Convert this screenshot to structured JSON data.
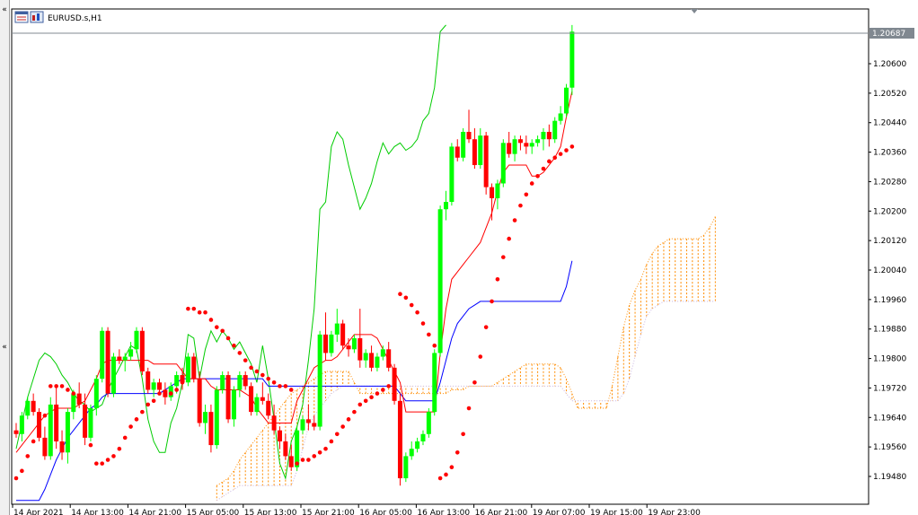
{
  "window": {
    "title": "EURUSD.s,H1",
    "icons": [
      "chart-window-icon",
      "chart-properties-icon"
    ]
  },
  "colors": {
    "background": "#ffffff",
    "bull_candle": "#00ff00",
    "bear_candle": "#ff0000",
    "tenkan": "#ff0000",
    "kijun": "#0000ff",
    "chikou": "#00cc00",
    "cloud": "#ff8c00",
    "sar": "#ff0000",
    "price_tag": "#808890",
    "axis_line": "#000000"
  },
  "chart_data": {
    "type": "candlestick",
    "symbol": "EURUSD.s",
    "timeframe": "H1",
    "current_price_label": "1.20687",
    "y_ticks": [
      "1.20600",
      "1.20520",
      "1.20440",
      "1.20360",
      "1.20280",
      "1.20200",
      "1.20120",
      "1.20040",
      "1.19960",
      "1.19880",
      "1.19800",
      "1.19720",
      "1.19640",
      "1.19560",
      "1.19480"
    ],
    "x_ticks": [
      "14 Apr 2021",
      "14 Apr 13:00",
      "14 Apr 21:00",
      "15 Apr 05:00",
      "15 Apr 13:00",
      "15 Apr 21:00",
      "16 Apr 05:00",
      "16 Apr 13:00",
      "16 Apr 21:00",
      "19 Apr 07:00",
      "19 Apr 15:00",
      "19 Apr 23:00"
    ],
    "ylim": [
      1.19415,
      1.20705
    ],
    "candles": [
      [
        1.19605,
        1.19625,
        1.19585,
        1.19595
      ],
      [
        1.19595,
        1.19655,
        1.19575,
        1.19645
      ],
      [
        1.19645,
        1.19695,
        1.19635,
        1.19685
      ],
      [
        1.19685,
        1.19705,
        1.19645,
        1.19655
      ],
      [
        1.19655,
        1.19665,
        1.19575,
        1.19585
      ],
      [
        1.19585,
        1.19615,
        1.19525,
        1.19535
      ],
      [
        1.19535,
        1.19695,
        1.19525,
        1.19675
      ],
      [
        1.19675,
        1.19725,
        1.19555,
        1.19575
      ],
      [
        1.19575,
        1.19605,
        1.19525,
        1.19545
      ],
      [
        1.19545,
        1.19665,
        1.19515,
        1.19655
      ],
      [
        1.19655,
        1.19715,
        1.19635,
        1.19705
      ],
      [
        1.19705,
        1.19735,
        1.19665,
        1.19675
      ],
      [
        1.19675,
        1.19705,
        1.19565,
        1.19585
      ],
      [
        1.19585,
        1.19675,
        1.19575,
        1.19665
      ],
      [
        1.19665,
        1.19755,
        1.19645,
        1.19745
      ],
      [
        1.19745,
        1.19885,
        1.19735,
        1.19875
      ],
      [
        1.19875,
        1.19885,
        1.19695,
        1.19705
      ],
      [
        1.19705,
        1.19815,
        1.19695,
        1.19805
      ],
      [
        1.19805,
        1.19825,
        1.19785,
        1.19795
      ],
      [
        1.19795,
        1.19815,
        1.19765,
        1.19805
      ],
      [
        1.19805,
        1.19845,
        1.19795,
        1.19825
      ],
      [
        1.19825,
        1.19885,
        1.19815,
        1.19875
      ],
      [
        1.19875,
        1.19885,
        1.19755,
        1.19765
      ],
      [
        1.19765,
        1.19775,
        1.19705,
        1.19715
      ],
      [
        1.19715,
        1.19745,
        1.19695,
        1.19735
      ],
      [
        1.19735,
        1.19745,
        1.19705,
        1.19715
      ],
      [
        1.19715,
        1.19735,
        1.19675,
        1.19695
      ],
      [
        1.19695,
        1.19735,
        1.19685,
        1.19725
      ],
      [
        1.19725,
        1.19765,
        1.19705,
        1.19755
      ],
      [
        1.19755,
        1.19775,
        1.19715,
        1.19735
      ],
      [
        1.19735,
        1.19815,
        1.19725,
        1.19805
      ],
      [
        1.19805,
        1.19815,
        1.19735,
        1.19745
      ],
      [
        1.19745,
        1.19765,
        1.19615,
        1.19625
      ],
      [
        1.19625,
        1.19675,
        1.19595,
        1.19655
      ],
      [
        1.19655,
        1.19675,
        1.19545,
        1.19565
      ],
      [
        1.19565,
        1.19725,
        1.19555,
        1.19715
      ],
      [
        1.19715,
        1.19765,
        1.19705,
        1.19755
      ],
      [
        1.19755,
        1.19765,
        1.19625,
        1.19635
      ],
      [
        1.19635,
        1.19725,
        1.19615,
        1.19715
      ],
      [
        1.19715,
        1.19765,
        1.19695,
        1.19755
      ],
      [
        1.19755,
        1.19765,
        1.19715,
        1.19725
      ],
      [
        1.19725,
        1.19735,
        1.19645,
        1.19655
      ],
      [
        1.19655,
        1.19705,
        1.19645,
        1.19695
      ],
      [
        1.19695,
        1.19735,
        1.19675,
        1.19685
      ],
      [
        1.19685,
        1.19705,
        1.19635,
        1.19645
      ],
      [
        1.19645,
        1.19675,
        1.19595,
        1.19605
      ],
      [
        1.19605,
        1.19615,
        1.19555,
        1.19575
      ],
      [
        1.19575,
        1.19595,
        1.19525,
        1.19535
      ],
      [
        1.19535,
        1.19565,
        1.19495,
        1.19505
      ],
      [
        1.19505,
        1.19615,
        1.19495,
        1.19605
      ],
      [
        1.19605,
        1.19645,
        1.19595,
        1.19635
      ],
      [
        1.19635,
        1.19675,
        1.19605,
        1.19625
      ],
      [
        1.19625,
        1.19645,
        1.19605,
        1.19615
      ],
      [
        1.19615,
        1.19875,
        1.19605,
        1.19865
      ],
      [
        1.19865,
        1.19925,
        1.19795,
        1.19815
      ],
      [
        1.19815,
        1.19875,
        1.19805,
        1.19865
      ],
      [
        1.19865,
        1.19935,
        1.19845,
        1.19895
      ],
      [
        1.19895,
        1.19905,
        1.19825,
        1.19835
      ],
      [
        1.19835,
        1.19855,
        1.19805,
        1.19825
      ],
      [
        1.19825,
        1.19865,
        1.19815,
        1.19855
      ],
      [
        1.19855,
        1.19935,
        1.19775,
        1.19795
      ],
      [
        1.19795,
        1.19825,
        1.19775,
        1.19815
      ],
      [
        1.19815,
        1.19835,
        1.19765,
        1.19775
      ],
      [
        1.19775,
        1.19815,
        1.19765,
        1.19805
      ],
      [
        1.19805,
        1.19835,
        1.19795,
        1.19825
      ],
      [
        1.19825,
        1.19845,
        1.19765,
        1.19775
      ],
      [
        1.19775,
        1.19785,
        1.19675,
        1.19685
      ],
      [
        1.19685,
        1.19705,
        1.19455,
        1.19475
      ],
      [
        1.19475,
        1.19545,
        1.19465,
        1.19535
      ],
      [
        1.19535,
        1.19575,
        1.19525,
        1.19555
      ],
      [
        1.19555,
        1.19585,
        1.19545,
        1.19575
      ],
      [
        1.19575,
        1.19605,
        1.19565,
        1.19595
      ],
      [
        1.19595,
        1.19665,
        1.19585,
        1.19655
      ],
      [
        1.19655,
        1.19825,
        1.19645,
        1.19815
      ],
      [
        1.19815,
        1.20215,
        1.19805,
        1.20205
      ],
      [
        1.20205,
        1.20255,
        1.20175,
        1.20225
      ],
      [
        1.20225,
        1.20385,
        1.20215,
        1.20375
      ],
      [
        1.20375,
        1.20395,
        1.20335,
        1.20345
      ],
      [
        1.20345,
        1.20425,
        1.20335,
        1.20415
      ],
      [
        1.20415,
        1.20475,
        1.20385,
        1.20395
      ],
      [
        1.20395,
        1.20425,
        1.20315,
        1.20325
      ],
      [
        1.20325,
        1.20425,
        1.20315,
        1.20405
      ],
      [
        1.20405,
        1.20415,
        1.20245,
        1.20265
      ],
      [
        1.20265,
        1.20275,
        1.20175,
        1.20235
      ],
      [
        1.20235,
        1.20285,
        1.20205,
        1.20275
      ],
      [
        1.20275,
        1.20395,
        1.20265,
        1.20385
      ],
      [
        1.20385,
        1.20415,
        1.20345,
        1.20355
      ],
      [
        1.20355,
        1.20405,
        1.20335,
        1.20395
      ],
      [
        1.20395,
        1.20405,
        1.20365,
        1.20385
      ],
      [
        1.20385,
        1.20405,
        1.20355,
        1.20375
      ],
      [
        1.20375,
        1.20395,
        1.20355,
        1.20385
      ],
      [
        1.20385,
        1.20405,
        1.20375,
        1.20395
      ],
      [
        1.20395,
        1.20425,
        1.20365,
        1.20415
      ],
      [
        1.20415,
        1.20435,
        1.20375,
        1.20395
      ],
      [
        1.20395,
        1.20455,
        1.20385,
        1.20445
      ],
      [
        1.20445,
        1.20485,
        1.20435,
        1.20465
      ],
      [
        1.20465,
        1.20545,
        1.20455,
        1.20535
      ],
      [
        1.20535,
        1.20705,
        1.20515,
        1.20687
      ]
    ],
    "sar": [
      1.19475,
      1.19495,
      1.19535,
      1.19575,
      1.19605,
      1.19645,
      1.19725,
      1.19725,
      1.19725,
      1.19715,
      1.19705,
      1.19685,
      1.19665,
      1.19565,
      1.19515,
      1.19515,
      1.19525,
      1.19535,
      1.19555,
      1.19585,
      1.19615,
      1.19635,
      1.19655,
      1.19675,
      1.19685,
      1.19705,
      1.19705,
      1.19705,
      1.19715,
      1.19735,
      1.19935,
      1.19935,
      1.19925,
      1.19925,
      1.19905,
      1.19885,
      1.19875,
      1.19855,
      1.19835,
      1.19815,
      1.19795,
      1.19775,
      1.19765,
      1.19755,
      1.19745,
      1.19735,
      1.19725,
      1.19725,
      1.19715,
      1.19515,
      1.19525,
      1.19525,
      1.19535,
      1.19545,
      1.19555,
      1.19575,
      1.19595,
      1.19615,
      1.19635,
      1.19655,
      1.19675,
      1.19685,
      1.19695,
      1.19705,
      1.19715,
      1.19725,
      1.19725,
      1.19975,
      1.19965,
      1.19945,
      1.19925,
      1.19895,
      1.19865,
      1.19835,
      1.19475,
      1.19485,
      1.19505,
      1.19545,
      1.19595,
      1.19665,
      1.19735,
      1.19805,
      1.19885,
      1.19955,
      1.20015,
      1.20075,
      1.20125,
      1.20175,
      1.20215,
      1.20245,
      1.20275,
      1.20295,
      1.20315,
      1.20335,
      1.20345,
      1.20355,
      1.20365,
      1.20375
    ],
    "tenkan": [
      1.19545,
      1.19565,
      1.19585,
      1.19605,
      1.19625,
      1.19645,
      1.19655,
      1.19665,
      1.19665,
      1.19665,
      1.19665,
      1.19675,
      1.19685,
      1.19715,
      1.19745,
      1.19785,
      1.19795,
      1.19795,
      1.19795,
      1.19795,
      1.19795,
      1.19795,
      1.19795,
      1.19795,
      1.19785,
      1.19785,
      1.19785,
      1.19785,
      1.19785,
      1.19765,
      1.19745,
      1.19745,
      1.19745,
      1.19745,
      1.19725,
      1.19715,
      1.19715,
      1.19715,
      1.19715,
      1.19715,
      1.19705,
      1.19695,
      1.19665,
      1.19645,
      1.19625,
      1.19625,
      1.19625,
      1.19625,
      1.19625,
      1.19685,
      1.19715,
      1.19745,
      1.19775,
      1.19785,
      1.19795,
      1.19795,
      1.19805,
      1.19825,
      1.19845,
      1.19865,
      1.19865,
      1.19865,
      1.19865,
      1.19855,
      1.19825,
      1.19795,
      1.19765,
      1.19735,
      1.19655,
      1.19655,
      1.19655,
      1.19655,
      1.19655,
      1.19655,
      1.19815,
      1.19935,
      1.20015,
      1.20035,
      1.20055,
      1.20075,
      1.20095,
      1.20115,
      1.20155,
      1.20195,
      1.20255,
      1.20305,
      1.20325,
      1.20325,
      1.20325,
      1.20325,
      1.20295,
      1.20295,
      1.20305,
      1.20325,
      1.20345,
      1.20375,
      1.20455,
      1.20525
    ],
    "kijun": [
      1.19415,
      1.19415,
      1.19415,
      1.19415,
      1.19415,
      1.19445,
      1.19485,
      1.19525,
      1.19555,
      1.19585,
      1.19605,
      1.19625,
      1.19645,
      1.19665,
      1.19675,
      1.19695,
      1.19705,
      1.19705,
      1.19705,
      1.19705,
      1.19705,
      1.19705,
      1.19705,
      1.19705,
      1.19705,
      1.19705,
      1.19715,
      1.19725,
      1.19735,
      1.19745,
      1.19745,
      1.19745,
      1.19745,
      1.19745,
      1.19745,
      1.19745,
      1.19745,
      1.19745,
      1.19745,
      1.19745,
      1.19745,
      1.19745,
      1.19745,
      1.19745,
      1.19725,
      1.19725,
      1.19725,
      1.19725,
      1.19725,
      1.19725,
      1.19725,
      1.19725,
      1.19725,
      1.19725,
      1.19725,
      1.19725,
      1.19725,
      1.19725,
      1.19725,
      1.19725,
      1.19725,
      1.19725,
      1.19725,
      1.19725,
      1.19725,
      1.19725,
      1.19725,
      1.19705,
      1.19685,
      1.19685,
      1.19685,
      1.19685,
      1.19685,
      1.19685,
      1.19735,
      1.19795,
      1.19855,
      1.19895,
      1.19915,
      1.19935,
      1.19945,
      1.19955,
      1.19955,
      1.19955,
      1.19955,
      1.19955,
      1.19955,
      1.19955,
      1.19955,
      1.19955,
      1.19955,
      1.19955,
      1.19955,
      1.19955,
      1.19955,
      1.19955,
      1.19995,
      1.20065
    ],
    "chikou_start_index": 0,
    "chikou": [
      1.19555,
      1.19625,
      1.19695,
      1.19745,
      1.19795,
      1.19815,
      1.19805,
      1.19785,
      1.19755,
      1.19735,
      1.19705,
      1.19685,
      1.19675,
      1.19655,
      1.19665,
      1.19675,
      1.19715,
      1.19745,
      1.19775,
      1.19805,
      1.19835,
      1.19825,
      1.19745,
      1.19635,
      1.19575,
      1.19545,
      1.19545,
      1.19625,
      1.19665,
      1.19735,
      1.19865,
      1.19855,
      1.19745,
      1.19825,
      1.19875,
      1.19845,
      1.19875,
      1.19855,
      1.19825,
      1.19845,
      1.19815,
      1.19785,
      1.19735,
      1.19835,
      1.19745,
      1.19635,
      1.19515,
      1.19475,
      1.19575,
      1.19615,
      1.19675,
      1.19795,
      1.19935,
      1.20205,
      1.20225,
      1.20375,
      1.20415,
      1.20395,
      1.20325,
      1.20265,
      1.20205,
      1.20235,
      1.20275,
      1.20335,
      1.20385,
      1.20355,
      1.20375,
      1.20385,
      1.20365,
      1.20375,
      1.20395,
      1.20445,
      1.20465,
      1.20535,
      1.20687,
      1.20705
    ],
    "cloud_start_index": 35,
    "cloud_span_a": [
      1.19455,
      1.19465,
      1.19475,
      1.19495,
      1.19525,
      1.19545,
      1.19565,
      1.19585,
      1.19605,
      1.19625,
      1.19645,
      1.19665,
      1.19685,
      1.19705,
      1.19715,
      1.19725,
      1.19735,
      1.19745,
      1.19755,
      1.19765,
      1.19765,
      1.19765,
      1.19765,
      1.19765,
      1.19735,
      1.19705,
      1.19705,
      1.19705,
      1.19705,
      1.19705,
      1.19705,
      1.19705,
      1.19705,
      1.19705,
      1.19705,
      1.19705,
      1.19705,
      1.19705,
      1.19705,
      1.19705,
      1.19705,
      1.19715,
      1.19715,
      1.19715,
      1.19725,
      1.19725,
      1.19725,
      1.19725,
      1.19725,
      1.19735,
      1.19745,
      1.19755,
      1.19765,
      1.19775,
      1.19785,
      1.19785,
      1.19785,
      1.19785,
      1.19785,
      1.19785,
      1.19775,
      1.19745,
      1.19705,
      1.19665,
      1.19665,
      1.19665,
      1.19665,
      1.19665,
      1.19665,
      1.19725,
      1.19805,
      1.19885,
      1.19945,
      1.19985,
      1.20015,
      1.20055,
      1.20085,
      1.20105,
      1.20115,
      1.20125,
      1.20125,
      1.20125,
      1.20125,
      1.20125,
      1.20125,
      1.20135,
      1.20155,
      1.20185
    ],
    "cloud_span_b": [
      1.19415,
      1.19425,
      1.19435,
      1.19445,
      1.19455,
      1.19455,
      1.19455,
      1.19455,
      1.19455,
      1.19455,
      1.19455,
      1.19455,
      1.19455,
      1.19455,
      1.19495,
      1.19555,
      1.19615,
      1.19645,
      1.19665,
      1.19685,
      1.19705,
      1.19715,
      1.19725,
      1.19725,
      1.19725,
      1.19725,
      1.19725,
      1.19725,
      1.19725,
      1.19725,
      1.19725,
      1.19725,
      1.19725,
      1.19725,
      1.19725,
      1.19725,
      1.19725,
      1.19725,
      1.19725,
      1.19725,
      1.19725,
      1.19725,
      1.19725,
      1.19725,
      1.19725,
      1.19725,
      1.19725,
      1.19725,
      1.19725,
      1.19725,
      1.19725,
      1.19725,
      1.19725,
      1.19725,
      1.19725,
      1.19725,
      1.19725,
      1.19725,
      1.19725,
      1.19725,
      1.19725,
      1.19705,
      1.19685,
      1.19685,
      1.19685,
      1.19685,
      1.19685,
      1.19685,
      1.19685,
      1.19685,
      1.19685,
      1.19705,
      1.19745,
      1.19805,
      1.19865,
      1.19915,
      1.19935,
      1.19945,
      1.19955,
      1.19955,
      1.19955,
      1.19955,
      1.19955,
      1.19955,
      1.19955,
      1.19955,
      1.19955,
      1.19955
    ]
  }
}
